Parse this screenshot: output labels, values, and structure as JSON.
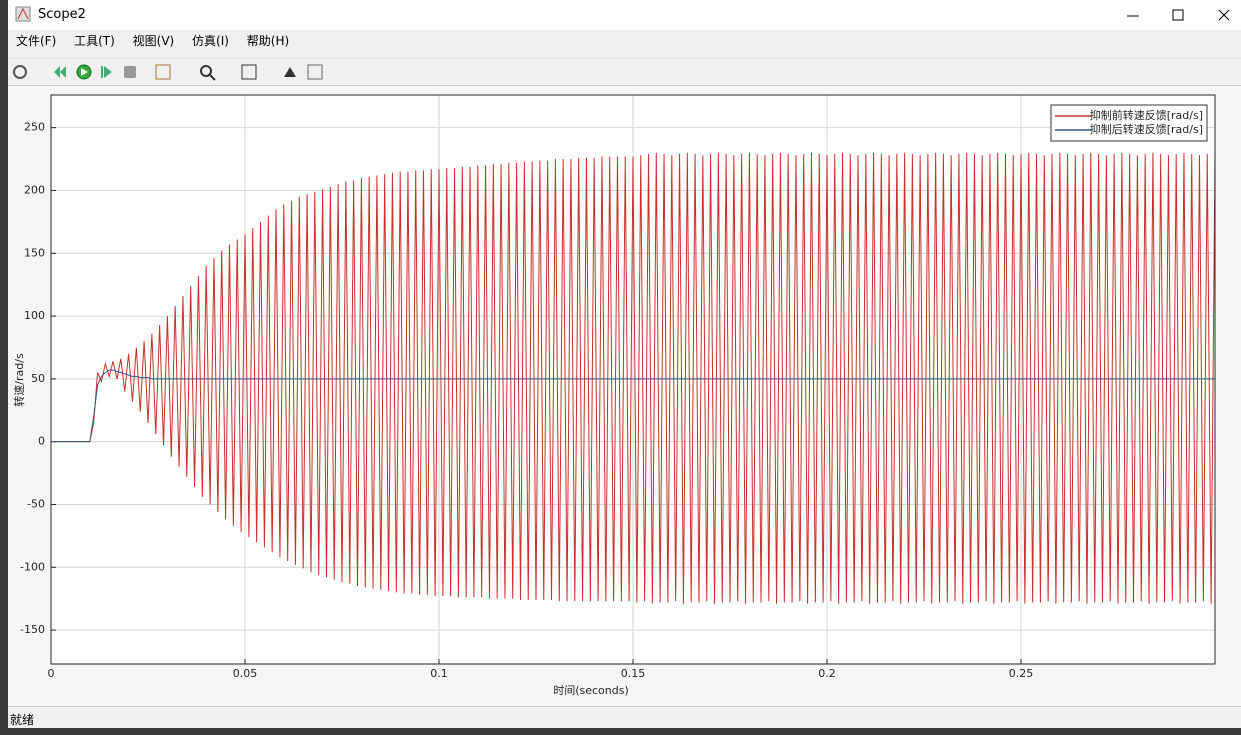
{
  "window": {
    "title": "Scope2",
    "menu": [
      "文件(F)",
      "工具(T)",
      "视图(V)",
      "仿真(I)",
      "帮助(H)"
    ],
    "status": "就绪"
  },
  "chart_data": {
    "type": "line",
    "xlabel": "时间(seconds)",
    "ylabel": "转速/rad/s",
    "x": [
      0,
      0.01,
      0.011,
      0.012,
      0.013,
      0.014,
      0.015,
      0.016,
      0.017,
      0.018,
      0.019,
      0.02,
      0.021,
      0.022,
      0.023,
      0.024,
      0.025,
      0.026,
      0.027,
      0.028,
      0.029,
      0.03,
      0.031,
      0.032,
      0.033,
      0.034,
      0.035,
      0.036,
      0.037,
      0.038,
      0.039,
      0.04,
      0.041,
      0.042,
      0.043,
      0.044,
      0.045,
      0.046,
      0.047,
      0.048,
      0.049,
      0.05,
      0.051,
      0.052,
      0.053,
      0.054,
      0.055,
      0.056,
      0.057,
      0.058,
      0.059,
      0.06,
      0.061,
      0.062,
      0.063,
      0.064,
      0.065,
      0.066,
      0.067,
      0.068,
      0.069,
      0.07,
      0.071,
      0.072,
      0.073,
      0.074,
      0.075,
      0.076,
      0.077,
      0.078,
      0.079,
      0.08,
      0.081,
      0.082,
      0.083,
      0.084,
      0.085,
      0.086,
      0.087,
      0.088,
      0.089,
      0.09,
      0.091,
      0.092,
      0.093,
      0.094,
      0.095,
      0.096,
      0.097,
      0.098,
      0.099,
      0.1,
      0.101,
      0.102,
      0.103,
      0.104,
      0.105,
      0.106,
      0.107,
      0.108,
      0.109,
      0.11,
      0.111,
      0.112,
      0.113,
      0.114,
      0.115,
      0.116,
      0.117,
      0.118,
      0.119,
      0.12,
      0.121,
      0.122,
      0.123,
      0.124,
      0.125,
      0.126,
      0.127,
      0.128,
      0.129,
      0.13,
      0.131,
      0.132,
      0.133,
      0.134,
      0.135,
      0.136,
      0.137,
      0.138,
      0.139,
      0.14,
      0.141,
      0.142,
      0.143,
      0.144,
      0.145,
      0.146,
      0.147,
      0.148,
      0.149,
      0.15,
      0.151,
      0.152,
      0.153,
      0.154,
      0.155,
      0.156,
      0.157,
      0.158,
      0.159,
      0.16,
      0.161,
      0.162,
      0.163,
      0.164,
      0.165,
      0.166,
      0.167,
      0.168,
      0.169,
      0.17,
      0.171,
      0.172,
      0.173,
      0.174,
      0.175,
      0.176,
      0.177,
      0.178,
      0.179,
      0.18,
      0.181,
      0.182,
      0.183,
      0.184,
      0.185,
      0.186,
      0.187,
      0.188,
      0.189,
      0.19,
      0.191,
      0.192,
      0.193,
      0.194,
      0.195,
      0.196,
      0.197,
      0.198,
      0.199,
      0.2,
      0.201,
      0.202,
      0.203,
      0.204,
      0.205,
      0.206,
      0.207,
      0.208,
      0.209,
      0.21,
      0.211,
      0.212,
      0.213,
      0.214,
      0.215,
      0.216,
      0.217,
      0.218,
      0.219,
      0.22,
      0.221,
      0.222,
      0.223,
      0.224,
      0.225,
      0.226,
      0.227,
      0.228,
      0.229,
      0.23,
      0.231,
      0.232,
      0.233,
      0.234,
      0.235,
      0.236,
      0.237,
      0.238,
      0.239,
      0.24,
      0.241,
      0.242,
      0.243,
      0.244,
      0.245,
      0.246,
      0.247,
      0.248,
      0.249,
      0.25,
      0.251,
      0.252,
      0.253,
      0.254,
      0.255,
      0.256,
      0.257,
      0.258,
      0.259,
      0.26,
      0.261,
      0.262,
      0.263,
      0.264,
      0.265,
      0.266,
      0.267,
      0.268,
      0.269,
      0.27,
      0.271,
      0.272,
      0.273,
      0.274,
      0.275,
      0.276,
      0.277,
      0.278,
      0.279,
      0.28,
      0.281,
      0.282,
      0.283,
      0.284,
      0.285,
      0.286,
      0.287,
      0.288,
      0.289,
      0.29,
      0.291,
      0.292,
      0.293,
      0.294,
      0.295,
      0.296,
      0.297,
      0.298,
      0.299,
      0.3
    ],
    "series": [
      {
        "name": "抑制前转速反馈[rad/s]",
        "color": "#c8302a",
        "values": [
          0,
          0,
          15,
          55,
          48,
          62,
          52,
          64,
          50,
          66,
          40,
          70,
          32,
          75,
          24,
          80,
          15,
          86,
          6,
          93,
          -3,
          100,
          -12,
          108,
          -20,
          116,
          -28,
          124,
          -36,
          132,
          -44,
          140,
          -50,
          146,
          -56,
          152,
          -62,
          157,
          -67,
          161,
          -72,
          165,
          -76,
          170,
          -80,
          175,
          -84,
          180,
          -88,
          185,
          -92,
          189,
          -95,
          192,
          -98,
          195,
          -101,
          197,
          -104,
          199,
          -106,
          201,
          -108,
          203,
          -110,
          205,
          -112,
          207,
          -113,
          208,
          -115,
          210,
          -116,
          211,
          -117,
          212,
          -118,
          213,
          -119,
          214,
          -120,
          215,
          -121,
          215,
          -121,
          216,
          -122,
          216,
          -122,
          217,
          -123,
          217,
          -123,
          218,
          -123,
          218,
          -124,
          219,
          -124,
          219,
          -124,
          220,
          -124,
          220,
          -125,
          221,
          -125,
          221,
          -125,
          222,
          -125,
          222,
          -126,
          223,
          -126,
          223,
          -126,
          224,
          -126,
          224,
          -126,
          225,
          -127,
          225,
          -127,
          225,
          -127,
          226,
          -127,
          226,
          -127,
          226,
          -127,
          227,
          -127,
          227,
          -127,
          227,
          -127,
          227,
          -127,
          227,
          -128,
          228,
          -127,
          229,
          -129,
          230,
          -128,
          229,
          -128,
          228,
          -127,
          229,
          -129,
          230,
          -128,
          229,
          -128,
          228,
          -127,
          229,
          -129,
          230,
          -128,
          229,
          -128,
          228,
          -127,
          229,
          -129,
          230,
          -128,
          229,
          -128,
          228,
          -127,
          229,
          -129,
          230,
          -128,
          229,
          -128,
          228,
          -127,
          229,
          -129,
          230,
          -128,
          229,
          -128,
          228,
          -127,
          229,
          -129,
          230,
          -128,
          229,
          -128,
          228,
          -127,
          229,
          -129,
          230,
          -128,
          229,
          -128,
          228,
          -127,
          229,
          -129,
          230,
          -128,
          229,
          -128,
          228,
          -127,
          229,
          -129,
          230,
          -128,
          229,
          -128,
          228,
          -127,
          229,
          -129,
          230,
          -128,
          229,
          -128,
          228,
          -127,
          229,
          -129,
          230,
          -128,
          229,
          -128,
          228,
          -127,
          229,
          -129,
          230,
          -128,
          229,
          -128,
          228,
          -127,
          229,
          -129,
          230,
          -128,
          229,
          -128,
          228,
          -127,
          229,
          -129,
          230,
          -128,
          229,
          -128,
          228,
          -127,
          229,
          -129,
          230,
          -128,
          229,
          -128,
          228,
          -127,
          229,
          -129,
          230,
          -128,
          229,
          -128,
          228,
          -127,
          229,
          -129,
          230,
          -128,
          229,
          -128,
          228,
          -127,
          229,
          -129,
          230
        ]
      },
      {
        "name": "抑制后转速反馈[rad/s]",
        "color": "#2b5a8a",
        "values": [
          0,
          0,
          20,
          45,
          52,
          55,
          57,
          57,
          56,
          55,
          54,
          53,
          52,
          52,
          51,
          51,
          51,
          50,
          50,
          50,
          50,
          50,
          50,
          50,
          50,
          50,
          50,
          50,
          50,
          50,
          50,
          50,
          50,
          50,
          50,
          50,
          50,
          50,
          50,
          50,
          50,
          50,
          50,
          50,
          50,
          50,
          50,
          50,
          50,
          50,
          50,
          50,
          50,
          50,
          50,
          50,
          50,
          50,
          50,
          50,
          50,
          50,
          50,
          50,
          50,
          50,
          50,
          50,
          50,
          50,
          50,
          50,
          50,
          50,
          50,
          50,
          50,
          50,
          50,
          50,
          50,
          50,
          50,
          50,
          50,
          50,
          50,
          50,
          50,
          50,
          50,
          50,
          50,
          50,
          50,
          50,
          50,
          50,
          50,
          50,
          50,
          50,
          50,
          50,
          50,
          50,
          50,
          50,
          50,
          50,
          50,
          50,
          50,
          50,
          50,
          50,
          50,
          50,
          50,
          50,
          50,
          50,
          50,
          50,
          50,
          50,
          50,
          50,
          50,
          50,
          50,
          50,
          50,
          50,
          50,
          50,
          50,
          50,
          50,
          50,
          50,
          50,
          50,
          50,
          50,
          50,
          50,
          50,
          50,
          50,
          50,
          50,
          50,
          50,
          50,
          50,
          50,
          50,
          50,
          50,
          50,
          50,
          50,
          50,
          50,
          50,
          50,
          50,
          50,
          50,
          50,
          50,
          50,
          50,
          50,
          50,
          50,
          50,
          50,
          50,
          50,
          50,
          50,
          50,
          50,
          50,
          50,
          50,
          50,
          50,
          50,
          50,
          50,
          50,
          50,
          50,
          50,
          50,
          50,
          50,
          50,
          50,
          50,
          50,
          50,
          50,
          50,
          50,
          50,
          50,
          50,
          50,
          50,
          50,
          50,
          50,
          50,
          50,
          50,
          50,
          50,
          50,
          50,
          50,
          50,
          50,
          50,
          50,
          50,
          50,
          50,
          50,
          50,
          50,
          50,
          50,
          50,
          50,
          50,
          50,
          50,
          50,
          50,
          50,
          50,
          50,
          50,
          50,
          50,
          50,
          50,
          50,
          50,
          50,
          50,
          50,
          50,
          50,
          50,
          50,
          50,
          50,
          50,
          50,
          50,
          50,
          50,
          50,
          50,
          50,
          50,
          50,
          50,
          50,
          50,
          50,
          50,
          50,
          50,
          50,
          50,
          50,
          50,
          50,
          50,
          50,
          50,
          50,
          50,
          50,
          50,
          50
        ]
      }
    ],
    "xlim": [
      0,
      0.3
    ],
    "xticks": [
      0,
      0.05,
      0.1,
      0.15,
      0.2,
      0.25
    ],
    "ylim": [
      -177,
      276
    ],
    "yticks": [
      -150,
      -100,
      -50,
      0,
      50,
      100,
      150,
      200,
      250
    ],
    "grid": true,
    "legend": "upper right"
  }
}
